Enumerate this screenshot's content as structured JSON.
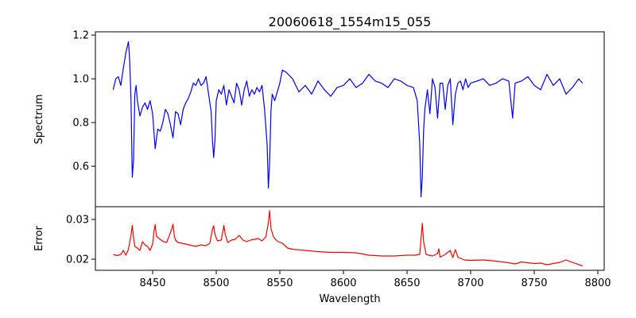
{
  "chart_data": [
    {
      "type": "line",
      "title": "20060618_1554m15_055",
      "xlabel": "",
      "ylabel": "Spectrum",
      "xlim": [
        8405,
        8805
      ],
      "ylim": [
        0.415,
        1.215
      ],
      "yticks": [
        "0.6",
        "0.8",
        "1.0",
        "1.2"
      ],
      "ytick_values": [
        0.6,
        0.8,
        1.0,
        1.2
      ],
      "series": [
        {
          "name": "Spectrum",
          "color": "#0000ff",
          "x": [
            8419,
            8421,
            8423,
            8425,
            8427,
            8429,
            8431,
            8432,
            8433,
            8434,
            8435,
            8436,
            8437,
            8438,
            8440,
            8442,
            8444,
            8446,
            8448,
            8450,
            8452,
            8454,
            8456,
            8458,
            8460,
            8462,
            8464,
            8466,
            8468,
            8470,
            8472,
            8474,
            8476,
            8478,
            8480,
            8482,
            8484,
            8486,
            8488,
            8490,
            8492,
            8494,
            8496,
            8497,
            8498,
            8499,
            8500,
            8502,
            8504,
            8506,
            8508,
            8510,
            8512,
            8514,
            8516,
            8518,
            8520,
            8522,
            8524,
            8526,
            8528,
            8530,
            8532,
            8534,
            8536,
            8538,
            8540,
            8541,
            8542,
            8543,
            8544,
            8546,
            8548,
            8550,
            8552,
            8555,
            8560,
            8565,
            8570,
            8575,
            8580,
            8585,
            8590,
            8595,
            8600,
            8605,
            8610,
            8615,
            8620,
            8625,
            8630,
            8635,
            8640,
            8645,
            8650,
            8655,
            8658,
            8660,
            8661,
            8662,
            8663,
            8664,
            8666,
            8668,
            8670,
            8672,
            8674,
            8676,
            8678,
            8680,
            8682,
            8684,
            8686,
            8688,
            8690,
            8692,
            8694,
            8696,
            8698,
            8700,
            8705,
            8710,
            8715,
            8720,
            8725,
            8730,
            8733,
            8735,
            8740,
            8745,
            8750,
            8755,
            8760,
            8765,
            8770,
            8775,
            8780,
            8785,
            8788
          ],
          "values": [
            0.95,
            1.0,
            1.01,
            0.97,
            1.05,
            1.12,
            1.17,
            1.08,
            0.9,
            0.55,
            0.63,
            0.93,
            0.97,
            0.9,
            0.83,
            0.87,
            0.89,
            0.86,
            0.9,
            0.84,
            0.68,
            0.77,
            0.76,
            0.8,
            0.86,
            0.84,
            0.79,
            0.73,
            0.85,
            0.84,
            0.79,
            0.86,
            0.89,
            0.91,
            0.94,
            0.98,
            0.97,
            1.0,
            0.97,
            0.98,
            1.01,
            0.93,
            0.85,
            0.72,
            0.64,
            0.72,
            0.9,
            0.95,
            0.93,
            0.97,
            0.88,
            0.95,
            0.92,
            0.89,
            0.98,
            0.95,
            0.88,
            0.95,
            0.99,
            0.92,
            0.95,
            0.93,
            0.96,
            0.94,
            0.97,
            0.86,
            0.7,
            0.5,
            0.62,
            0.85,
            0.93,
            0.9,
            0.94,
            0.98,
            1.04,
            1.03,
            1.0,
            0.94,
            0.97,
            0.93,
            0.99,
            0.95,
            0.92,
            0.96,
            0.97,
            1.0,
            0.96,
            0.98,
            1.02,
            0.99,
            0.98,
            0.96,
            1.0,
            0.99,
            0.97,
            0.96,
            0.9,
            0.7,
            0.46,
            0.55,
            0.76,
            0.86,
            0.95,
            0.84,
            1.0,
            0.96,
            0.82,
            0.98,
            0.98,
            0.86,
            0.97,
            1.0,
            0.79,
            0.93,
            0.98,
            0.99,
            0.95,
            1.0,
            0.96,
            0.98,
            0.99,
            1.0,
            0.97,
            0.98,
            1.0,
            0.99,
            0.82,
            0.98,
            0.99,
            1.01,
            0.97,
            0.95,
            1.02,
            0.97,
            1.0,
            0.93,
            0.96,
            1.0,
            0.98
          ]
        }
      ]
    },
    {
      "type": "line",
      "title": "",
      "xlabel": "Wavelength",
      "ylabel": "Error",
      "xlim": [
        8405,
        8805
      ],
      "ylim": [
        0.0172,
        0.0332
      ],
      "yticks": [
        "0.02",
        "0.03"
      ],
      "ytick_values": [
        0.02,
        0.03
      ],
      "xticks": [
        "8450",
        "8500",
        "8550",
        "8600",
        "8650",
        "8700",
        "8750",
        "8800"
      ],
      "xtick_values": [
        8450,
        8500,
        8550,
        8600,
        8650,
        8700,
        8750,
        8800
      ],
      "series": [
        {
          "name": "Error",
          "color": "#ff0000",
          "x": [
            8419,
            8422,
            8425,
            8427,
            8429,
            8431,
            8433,
            8434,
            8435,
            8436,
            8438,
            8440,
            8442,
            8444,
            8446,
            8448,
            8450,
            8451,
            8452,
            8453,
            8455,
            8458,
            8461,
            8463,
            8465,
            8466,
            8467,
            8468,
            8470,
            8473,
            8476,
            8480,
            8484,
            8488,
            8492,
            8495,
            8497,
            8498,
            8499,
            8501,
            8504,
            8506,
            8507,
            8509,
            8512,
            8515,
            8518,
            8521,
            8524,
            8527,
            8530,
            8533,
            8536,
            8539,
            8541,
            8542,
            8543,
            8545,
            8548,
            8552,
            8556,
            8560,
            8570,
            8580,
            8590,
            8600,
            8610,
            8620,
            8630,
            8640,
            8650,
            8656,
            8660,
            8661,
            8662,
            8663,
            8665,
            8670,
            8674,
            8675,
            8676,
            8680,
            8684,
            8686,
            8688,
            8690,
            8695,
            8700,
            8710,
            8720,
            8730,
            8735,
            8740,
            8750,
            8755,
            8760,
            8770,
            8775,
            8780,
            8788
          ],
          "values": [
            0.0212,
            0.0209,
            0.0212,
            0.0222,
            0.021,
            0.0225,
            0.026,
            0.0285,
            0.0255,
            0.0232,
            0.0228,
            0.0222,
            0.0244,
            0.0236,
            0.0232,
            0.0222,
            0.0238,
            0.0268,
            0.0287,
            0.0258,
            0.0252,
            0.0245,
            0.0242,
            0.0258,
            0.0276,
            0.0288,
            0.026,
            0.0248,
            0.0242,
            0.024,
            0.0238,
            0.0235,
            0.0232,
            0.0236,
            0.0234,
            0.024,
            0.0275,
            0.0284,
            0.0262,
            0.0246,
            0.0248,
            0.0285,
            0.0264,
            0.0242,
            0.0248,
            0.025,
            0.026,
            0.0248,
            0.0244,
            0.0248,
            0.025,
            0.0252,
            0.0246,
            0.0256,
            0.0292,
            0.0322,
            0.0278,
            0.0256,
            0.0245,
            0.024,
            0.0228,
            0.0225,
            0.0222,
            0.0219,
            0.0217,
            0.0217,
            0.0216,
            0.021,
            0.0208,
            0.0208,
            0.021,
            0.021,
            0.0212,
            0.025,
            0.029,
            0.0245,
            0.0212,
            0.0208,
            0.0214,
            0.0226,
            0.0205,
            0.0212,
            0.0222,
            0.0204,
            0.0224,
            0.0205,
            0.0198,
            0.0197,
            0.0198,
            0.0195,
            0.0191,
            0.0188,
            0.0193,
            0.0189,
            0.019,
            0.0186,
            0.0192,
            0.0198,
            0.0192,
            0.0183
          ]
        }
      ]
    }
  ]
}
